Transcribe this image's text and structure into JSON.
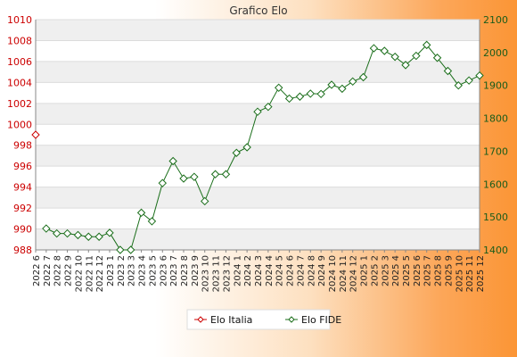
{
  "chart_data": {
    "type": "line",
    "title": "Grafico Elo",
    "x": [
      "2022 6",
      "2022 7",
      "2022 8",
      "2022 9",
      "2022 10",
      "2022 11",
      "2022 12",
      "2023 1",
      "2023 2",
      "2023 3",
      "2023 4",
      "2023 5",
      "2023 6",
      "2023 7",
      "2023 8",
      "2023 9",
      "2023 10",
      "2023 11",
      "2023 12",
      "2024 1",
      "2024 2",
      "2024 3",
      "2024 4",
      "2024 5",
      "2024 6",
      "2024 7",
      "2024 8",
      "2024 9",
      "2024 10",
      "2024 11",
      "2024 12",
      "2025 1",
      "2025 2",
      "2025 3",
      "2025 4",
      "2025 5",
      "2025 6",
      "2025 7",
      "2025 8",
      "2025 9",
      "2025 10",
      "2025 11",
      "2025 12"
    ],
    "y_left": {
      "lim": [
        988,
        1010
      ],
      "ticks": [
        988,
        990,
        992,
        994,
        996,
        998,
        1000,
        1002,
        1004,
        1006,
        1008,
        1010
      ],
      "color": "#cc0000"
    },
    "y_right": {
      "lim": [
        1400,
        2100
      ],
      "ticks": [
        1400,
        1500,
        1600,
        1700,
        1800,
        1900,
        2000,
        2100
      ],
      "color": "#1a5c1a"
    },
    "grid": "horizontal",
    "legend_position": "bottom",
    "series": [
      {
        "name": "Elo Italia",
        "axis": "left",
        "color": "#cc0000",
        "values": [
          999,
          null,
          null,
          null,
          null,
          null,
          null,
          null,
          null,
          null,
          null,
          null,
          null,
          null,
          null,
          null,
          null,
          null,
          null,
          null,
          null,
          null,
          null,
          null,
          null,
          null,
          null,
          null,
          null,
          null,
          null,
          null,
          null,
          null,
          null,
          null,
          null,
          null,
          null,
          null,
          null,
          null,
          null
        ]
      },
      {
        "name": "Elo FIDE",
        "axis": "right",
        "color": "#1a6e1a",
        "values": [
          null,
          1465,
          1450,
          1450,
          1445,
          1440,
          1440,
          1452,
          1400,
          1400,
          1513,
          1487,
          1603,
          1670,
          1617,
          1622,
          1548,
          1630,
          1630,
          1695,
          1712,
          1820,
          1835,
          1893,
          1860,
          1866,
          1875,
          1874,
          1902,
          1890,
          1912,
          1925,
          2013,
          2005,
          1987,
          1962,
          1990,
          2023,
          1984,
          1944,
          1900,
          1915,
          1930
        ]
      }
    ]
  }
}
